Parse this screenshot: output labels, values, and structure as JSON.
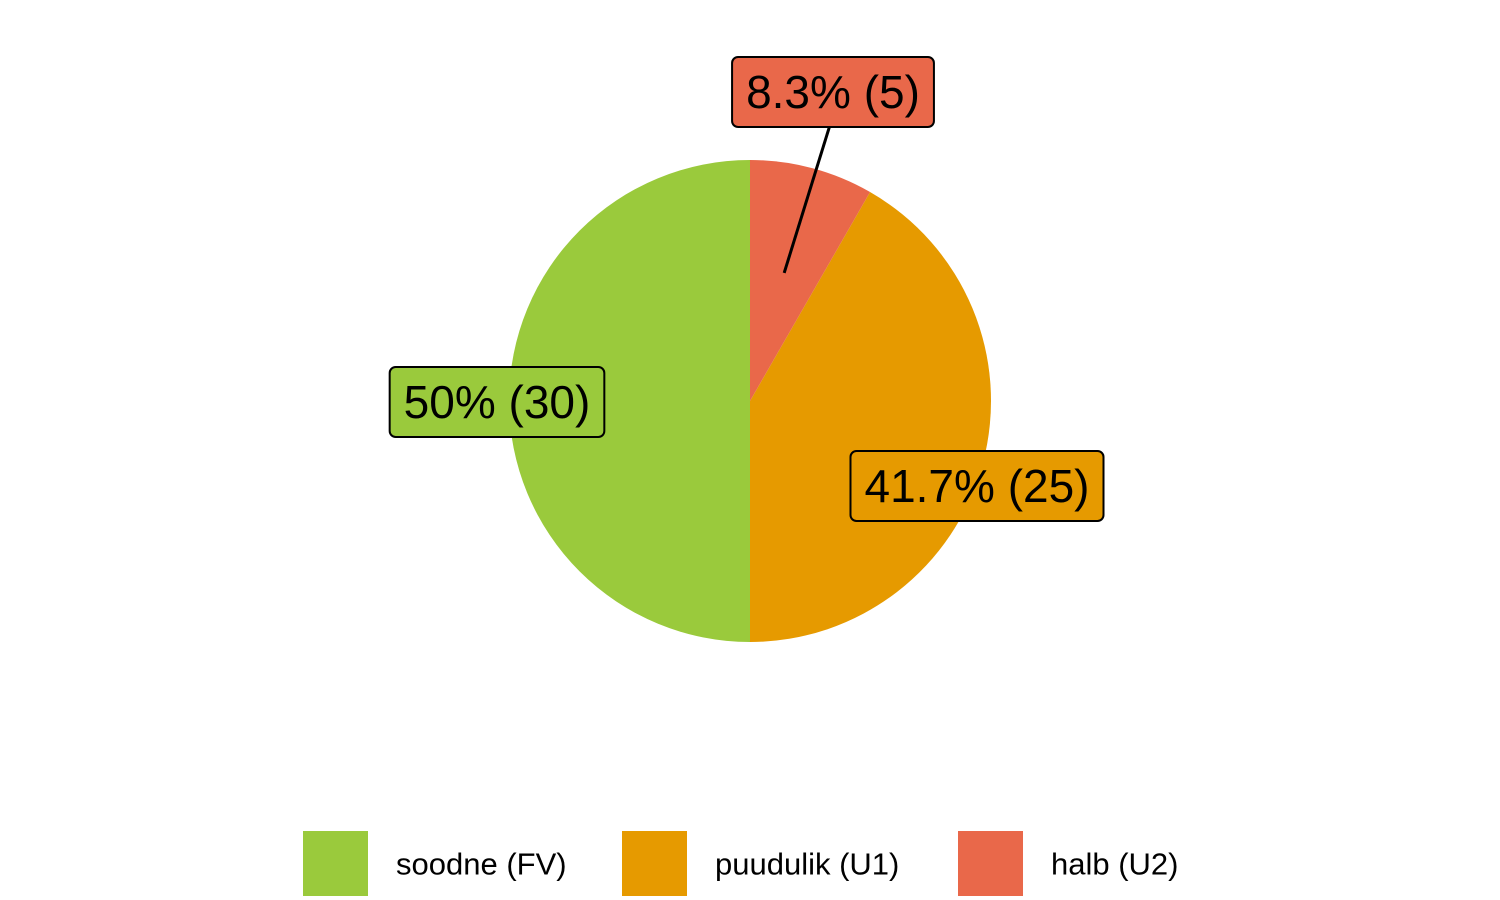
{
  "chart_data": {
    "type": "pie",
    "series": [
      {
        "name": "soodne (FV)",
        "color": "#9aca3c",
        "values": [
          50
        ],
        "value_labels": [
          "50% (30)"
        ]
      },
      {
        "name": "puudulik (U1)",
        "color": "#e69a00",
        "values": [
          41.7
        ],
        "value_labels": [
          "41.7% (25)"
        ]
      },
      {
        "name": "halb (U2)",
        "color": "#e9684a",
        "values": [
          8.3
        ],
        "value_labels": [
          "8.3% (5)"
        ]
      }
    ],
    "legend": "bottom"
  }
}
